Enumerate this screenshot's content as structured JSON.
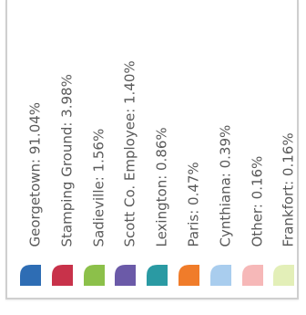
{
  "chart_data": {
    "type": "pie",
    "title": "",
    "legend_orientation": "vertical-text",
    "categories": [
      "Georgetown",
      "Stamping Ground",
      "Sadieville",
      "Scott Co. Employee",
      "Lexington",
      "Paris",
      "Cynthiana",
      "Other",
      "Frankfort"
    ],
    "values": [
      91.04,
      3.98,
      1.56,
      1.4,
      0.86,
      0.47,
      0.39,
      0.16,
      0.16
    ],
    "unit": "%",
    "legend": [
      {
        "label": "Georgetown: 91.04%",
        "color": "#2e6db4"
      },
      {
        "label": "Stamping Ground: 3.98%",
        "color": "#c8324a"
      },
      {
        "label": "Sadieville: 1.56%",
        "color": "#8cc04a"
      },
      {
        "label": "Scott Co. Employee: 1.40%",
        "color": "#6b5aa8"
      },
      {
        "label": "Lexington: 0.86%",
        "color": "#2a9aa3"
      },
      {
        "label": "Paris: 0.47%",
        "color": "#f07c2a"
      },
      {
        "label": "Cynthiana: 0.39%",
        "color": "#a9cdee"
      },
      {
        "label": "Other: 0.16%",
        "color": "#f6b8b8"
      },
      {
        "label": "Frankfort: 0.16%",
        "color": "#e3efb8"
      }
    ]
  }
}
